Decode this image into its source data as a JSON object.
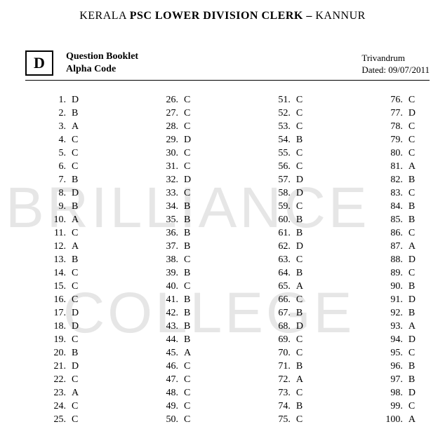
{
  "title": {
    "prefix": "KERALA ",
    "bold": "PSC LOWER DIVISION CLERK –",
    "suffix": " KANNUR"
  },
  "alpha_code": "D",
  "alpha_label_line1": "Question Booklet",
  "alpha_label_line2": "Alpha Code",
  "right_info_line1": "Trivandrum",
  "right_info_line2": "Dated: 09/07/2011",
  "watermark_line1": "BRILLIANCE",
  "watermark_line2": "COLLEGE",
  "columns": [
    [
      {
        "n": "1",
        "a": "D"
      },
      {
        "n": "2",
        "a": "B"
      },
      {
        "n": "3",
        "a": "A"
      },
      {
        "n": "4",
        "a": "C"
      },
      {
        "n": "5",
        "a": "C"
      },
      {
        "n": "6",
        "a": "C"
      },
      {
        "n": "7",
        "a": "B"
      },
      {
        "n": "8",
        "a": "D"
      },
      {
        "n": "9",
        "a": "B"
      },
      {
        "n": "10",
        "a": "A"
      },
      {
        "n": "11",
        "a": "C"
      },
      {
        "n": "12",
        "a": "A"
      },
      {
        "n": "13",
        "a": "B"
      },
      {
        "n": "14",
        "a": "C"
      },
      {
        "n": "15",
        "a": "C"
      },
      {
        "n": "16",
        "a": "C"
      },
      {
        "n": "17",
        "a": "D"
      },
      {
        "n": "18",
        "a": "D"
      },
      {
        "n": "19",
        "a": "C"
      },
      {
        "n": "20",
        "a": "B"
      },
      {
        "n": "21",
        "a": "D"
      },
      {
        "n": "22",
        "a": "C"
      },
      {
        "n": "23",
        "a": "A"
      },
      {
        "n": "24",
        "a": "C"
      },
      {
        "n": "25",
        "a": "C"
      }
    ],
    [
      {
        "n": "26",
        "a": "C"
      },
      {
        "n": "27",
        "a": "C"
      },
      {
        "n": "28",
        "a": "C"
      },
      {
        "n": "29",
        "a": "D"
      },
      {
        "n": "30",
        "a": "C"
      },
      {
        "n": "31",
        "a": "C"
      },
      {
        "n": "32",
        "a": "D"
      },
      {
        "n": "33",
        "a": "C"
      },
      {
        "n": "34",
        "a": "B"
      },
      {
        "n": "35",
        "a": "B"
      },
      {
        "n": "36",
        "a": "B"
      },
      {
        "n": "37",
        "a": "B"
      },
      {
        "n": "38",
        "a": "C"
      },
      {
        "n": "39",
        "a": "B"
      },
      {
        "n": "40",
        "a": "C"
      },
      {
        "n": "41",
        "a": "B"
      },
      {
        "n": "42",
        "a": "B"
      },
      {
        "n": "43",
        "a": "B"
      },
      {
        "n": "44",
        "a": "B"
      },
      {
        "n": "45",
        "a": "A"
      },
      {
        "n": "46",
        "a": "C"
      },
      {
        "n": "47",
        "a": "C"
      },
      {
        "n": "48",
        "a": "C"
      },
      {
        "n": "49",
        "a": "C"
      },
      {
        "n": "50",
        "a": "C"
      }
    ],
    [
      {
        "n": "51",
        "a": "C"
      },
      {
        "n": "52",
        "a": "C"
      },
      {
        "n": "53",
        "a": "C"
      },
      {
        "n": "54",
        "a": "B"
      },
      {
        "n": "55",
        "a": "C"
      },
      {
        "n": "56",
        "a": "C"
      },
      {
        "n": "57",
        "a": "D"
      },
      {
        "n": "58",
        "a": "D"
      },
      {
        "n": "59",
        "a": "C"
      },
      {
        "n": "60",
        "a": "B"
      },
      {
        "n": "61",
        "a": "B"
      },
      {
        "n": "62",
        "a": "D"
      },
      {
        "n": "63",
        "a": "C"
      },
      {
        "n": "64",
        "a": "B"
      },
      {
        "n": "65",
        "a": "A"
      },
      {
        "n": "66",
        "a": "C"
      },
      {
        "n": "67",
        "a": "B"
      },
      {
        "n": "68",
        "a": "D"
      },
      {
        "n": "69",
        "a": "C"
      },
      {
        "n": "70",
        "a": "C"
      },
      {
        "n": "71",
        "a": "B"
      },
      {
        "n": "72",
        "a": "A"
      },
      {
        "n": "73",
        "a": "C"
      },
      {
        "n": "74",
        "a": "B"
      },
      {
        "n": "75",
        "a": "C"
      }
    ],
    [
      {
        "n": "76",
        "a": "C"
      },
      {
        "n": "77",
        "a": "D"
      },
      {
        "n": "78",
        "a": "C"
      },
      {
        "n": "79",
        "a": "C"
      },
      {
        "n": "80",
        "a": "C"
      },
      {
        "n": "81",
        "a": "A"
      },
      {
        "n": "82",
        "a": "B"
      },
      {
        "n": "83",
        "a": "C"
      },
      {
        "n": "84",
        "a": "B"
      },
      {
        "n": "85",
        "a": "B"
      },
      {
        "n": "86",
        "a": "C"
      },
      {
        "n": "87",
        "a": "A"
      },
      {
        "n": "88",
        "a": "D"
      },
      {
        "n": "89",
        "a": "C"
      },
      {
        "n": "90",
        "a": "B"
      },
      {
        "n": "91",
        "a": "D"
      },
      {
        "n": "92",
        "a": "B"
      },
      {
        "n": "93",
        "a": "A"
      },
      {
        "n": "94",
        "a": "D"
      },
      {
        "n": "95",
        "a": "C"
      },
      {
        "n": "96",
        "a": "B"
      },
      {
        "n": "97",
        "a": "B"
      },
      {
        "n": "98",
        "a": "D"
      },
      {
        "n": "99",
        "a": "C"
      },
      {
        "n": "100",
        "a": "A"
      }
    ]
  ]
}
